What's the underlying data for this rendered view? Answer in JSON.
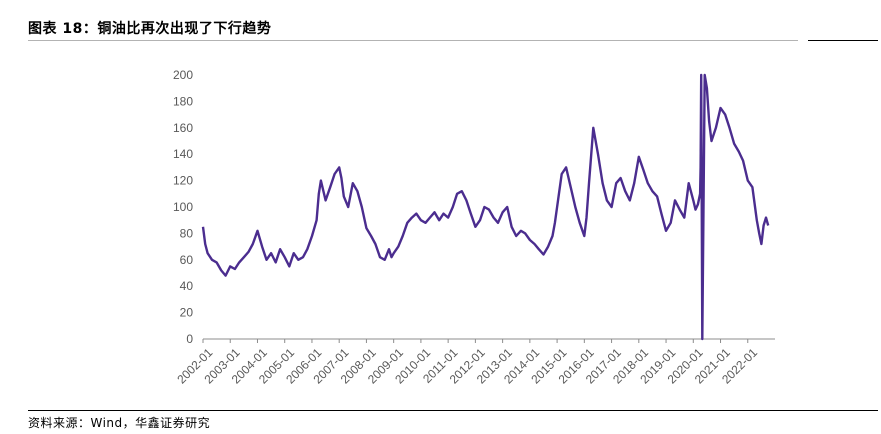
{
  "header": {
    "title": "图表 18：铜油比再次出现了下行趋势"
  },
  "footer": {
    "source": "资料来源：Wind，华鑫证券研究"
  },
  "chart_data": {
    "type": "line",
    "title": "",
    "xlabel": "",
    "ylabel": "",
    "ylim": [
      0,
      200
    ],
    "yticks": [
      0,
      20,
      40,
      60,
      80,
      100,
      120,
      140,
      160,
      180,
      200
    ],
    "xlim": [
      2002.0,
      2023.0
    ],
    "x_tick_labels": [
      "2002-01",
      "2003-01",
      "2004-01",
      "2005-01",
      "2006-01",
      "2007-01",
      "2008-01",
      "2009-01",
      "2010-01",
      "2011-01",
      "2012-01",
      "2013-01",
      "2014-01",
      "2015-01",
      "2016-01",
      "2017-01",
      "2018-01",
      "2019-01",
      "2020-01",
      "2021-01",
      "2022-01"
    ],
    "grid": false,
    "legend": "none",
    "line_color": "#4b2d8f",
    "series": [
      {
        "x": [
          2002.0,
          2002.08,
          2002.17,
          2002.33,
          2002.5,
          2002.67,
          2002.83,
          2003.0,
          2003.17,
          2003.33,
          2003.5,
          2003.67,
          2003.83,
          2004.0,
          2004.17,
          2004.33,
          2004.5,
          2004.67,
          2004.83,
          2005.0,
          2005.17,
          2005.33,
          2005.5,
          2005.67,
          2005.83,
          2006.0,
          2006.17,
          2006.25,
          2006.33,
          2006.5,
          2006.67,
          2006.83,
          2007.0,
          2007.08,
          2007.17,
          2007.33,
          2007.5,
          2007.67,
          2007.83,
          2008.0,
          2008.17,
          2008.33,
          2008.5,
          2008.67,
          2008.83,
          2008.92,
          2009.0,
          2009.17,
          2009.33,
          2009.5,
          2009.67,
          2009.83,
          2010.0,
          2010.17,
          2010.33,
          2010.5,
          2010.67,
          2010.83,
          2011.0,
          2011.17,
          2011.33,
          2011.5,
          2011.67,
          2011.83,
          2012.0,
          2012.17,
          2012.33,
          2012.5,
          2012.67,
          2012.83,
          2013.0,
          2013.17,
          2013.33,
          2013.5,
          2013.67,
          2013.83,
          2014.0,
          2014.17,
          2014.33,
          2014.5,
          2014.67,
          2014.83,
          2014.92,
          2015.0,
          2015.08,
          2015.17,
          2015.33,
          2015.5,
          2015.67,
          2015.83,
          2016.0,
          2016.08,
          2016.17,
          2016.33,
          2016.5,
          2016.67,
          2016.83,
          2017.0,
          2017.17,
          2017.33,
          2017.5,
          2017.67,
          2017.83,
          2018.0,
          2018.17,
          2018.33,
          2018.5,
          2018.67,
          2018.83,
          2019.0,
          2019.17,
          2019.33,
          2019.5,
          2019.67,
          2019.83,
          2020.0,
          2020.08,
          2020.17,
          2020.25,
          2020.27,
          2020.29,
          2020.33,
          2020.42,
          2020.5,
          2020.58,
          2020.67,
          2020.83,
          2021.0,
          2021.17,
          2021.33,
          2021.5,
          2021.67,
          2021.83,
          2022.0,
          2022.17,
          2022.33,
          2022.42,
          2022.5,
          2022.58,
          2022.67,
          2022.75
        ],
        "y": [
          85,
          72,
          65,
          60,
          58,
          52,
          48,
          55,
          53,
          58,
          62,
          66,
          72,
          82,
          70,
          60,
          65,
          58,
          68,
          62,
          55,
          65,
          60,
          62,
          68,
          78,
          90,
          110,
          120,
          105,
          115,
          125,
          130,
          122,
          108,
          100,
          118,
          112,
          100,
          84,
          78,
          72,
          62,
          60,
          68,
          62,
          65,
          70,
          78,
          88,
          92,
          95,
          90,
          88,
          92,
          96,
          90,
          95,
          92,
          100,
          110,
          112,
          105,
          95,
          85,
          90,
          100,
          98,
          92,
          88,
          96,
          100,
          85,
          78,
          82,
          80,
          75,
          72,
          68,
          64,
          70,
          78,
          88,
          100,
          112,
          125,
          130,
          115,
          100,
          88,
          78,
          92,
          118,
          160,
          140,
          118,
          105,
          100,
          118,
          122,
          112,
          105,
          118,
          138,
          128,
          118,
          112,
          108,
          95,
          82,
          88,
          105,
          98,
          92,
          118,
          105,
          98,
          102,
          110,
          130,
          200,
          0,
          200,
          190,
          165,
          150,
          160,
          175,
          170,
          160,
          148,
          142,
          135,
          120,
          115,
          90,
          80,
          72,
          86,
          92,
          86
        ]
      }
    ]
  }
}
